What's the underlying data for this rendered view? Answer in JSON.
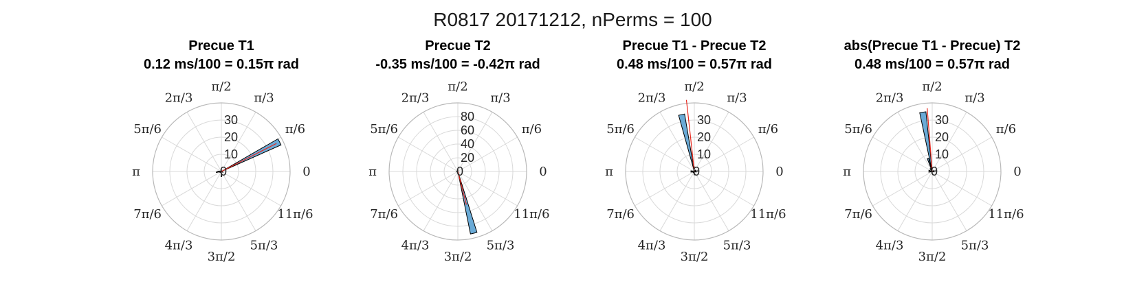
{
  "figure_title": "R0817 20171212, nPerms = 100",
  "colors": {
    "bar_fill": "#6aaad6",
    "bar_edge": "#000000",
    "mean_line": "#e8281e",
    "grid": "#d9d9d9",
    "outer_ring": "#b8b8b8"
  },
  "angle_tick_labels": [
    "0",
    "π/6",
    "π/3",
    "π/2",
    "2π/3",
    "5π/6",
    "π",
    "7π/6",
    "4π/3",
    "3π/2",
    "5π/3",
    "11π/6"
  ],
  "chart_data": [
    {
      "type": "polar-histogram",
      "title": "Precue T1",
      "subtitle": "0.12 ms/100 = 0.15π rad",
      "rlim": [
        0,
        40
      ],
      "r_ticks": [
        "10",
        "20",
        "30"
      ],
      "grid": true,
      "bins": [
        {
          "angle_pi": 0.15,
          "count": 38
        },
        {
          "angle_pi": 0.98,
          "count": 2
        },
        {
          "angle_pi": 1.05,
          "count": 3
        },
        {
          "angle_pi": 1.5,
          "count": 3
        },
        {
          "angle_pi": 0.5,
          "count": 1
        },
        {
          "angle_pi": 1.2,
          "count": 1
        },
        {
          "angle_pi": 1.85,
          "count": 1
        }
      ],
      "mean_angle_pi": 0.15,
      "mean_length": 36
    },
    {
      "type": "polar-histogram",
      "title": "Precue T2",
      "subtitle": "-0.35 ms/100 = -0.42π rad",
      "rlim": [
        0,
        100
      ],
      "r_ticks": [
        "20",
        "40",
        "60",
        "80"
      ],
      "grid": true,
      "bins": [
        {
          "angle_pi": 1.58,
          "count": 93
        },
        {
          "angle_pi": 0.5,
          "count": 2
        },
        {
          "angle_pi": 1.0,
          "count": 2
        },
        {
          "angle_pi": 1.25,
          "count": 1
        }
      ],
      "mean_angle_pi": 1.58,
      "mean_length": 50
    },
    {
      "type": "polar-histogram",
      "title": "Precue T1 - Precue T2",
      "subtitle": "0.48 ms/100 = 0.57π rad",
      "rlim": [
        0,
        40
      ],
      "r_ticks": [
        "10",
        "20",
        "30"
      ],
      "grid": true,
      "bins": [
        {
          "angle_pi": 0.57,
          "count": 34
        },
        {
          "angle_pi": 0.53,
          "count": 3
        },
        {
          "angle_pi": 0.95,
          "count": 2
        },
        {
          "angle_pi": 1.05,
          "count": 2
        },
        {
          "angle_pi": 1.5,
          "count": 2
        },
        {
          "angle_pi": 0.05,
          "count": 2
        },
        {
          "angle_pi": 1.9,
          "count": 1
        },
        {
          "angle_pi": 0.25,
          "count": 1
        },
        {
          "angle_pi": 1.25,
          "count": 1
        }
      ],
      "mean_angle_pi": 0.535,
      "mean_length": 42
    },
    {
      "type": "polar-histogram",
      "title": "abs(Precue T1 - Precue) T2",
      "subtitle": "0.48 ms/100 = 0.57π rad",
      "rlim": [
        0,
        40
      ],
      "r_ticks": [
        "10",
        "20",
        "30"
      ],
      "grid": true,
      "bins": [
        {
          "angle_pi": 0.55,
          "count": 35
        },
        {
          "angle_pi": 0.6,
          "count": 8
        },
        {
          "angle_pi": 0.7,
          "count": 2
        },
        {
          "angle_pi": 0.9,
          "count": 2
        },
        {
          "angle_pi": 1.05,
          "count": 2
        },
        {
          "angle_pi": 0.05,
          "count": 2
        },
        {
          "angle_pi": 1.95,
          "count": 1
        },
        {
          "angle_pi": 0.15,
          "count": 1
        },
        {
          "angle_pi": 1.5,
          "count": 1
        }
      ],
      "mean_angle_pi": 0.525,
      "mean_length": 37
    }
  ]
}
